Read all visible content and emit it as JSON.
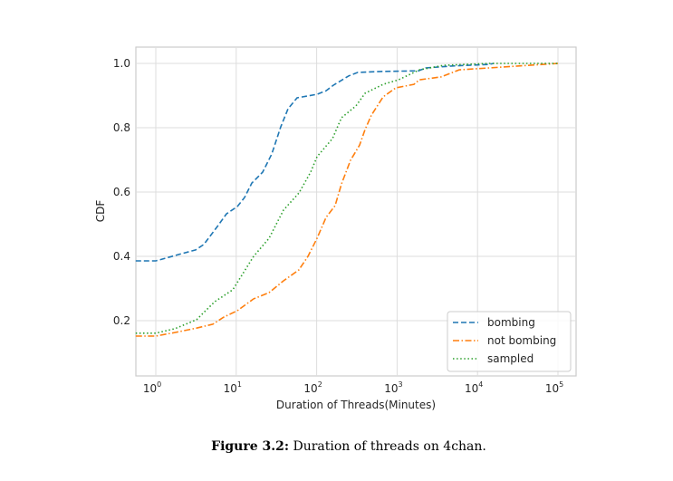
{
  "chart_data": {
    "type": "line",
    "xscale": "log",
    "x_note": "x values given as log10(minutes)",
    "xlabel": "Duration of Threads(Minutes)",
    "ylabel": "CDF",
    "xlim_log10": [
      -0.25,
      5.22
    ],
    "ylim": [
      0.03,
      1.05
    ],
    "grid": true,
    "legend_placement": "lower-right",
    "x_ticks": [
      {
        "base": "10",
        "exp": "0",
        "v": 0
      },
      {
        "base": "10",
        "exp": "1",
        "v": 1
      },
      {
        "base": "10",
        "exp": "2",
        "v": 2
      },
      {
        "base": "10",
        "exp": "3",
        "v": 3
      },
      {
        "base": "10",
        "exp": "4",
        "v": 4
      },
      {
        "base": "10",
        "exp": "5",
        "v": 5
      }
    ],
    "y_ticks": [
      "0.2",
      "0.4",
      "0.6",
      "0.8",
      "1.0"
    ],
    "series": [
      {
        "name": "bombing",
        "color": "#1f77b4",
        "style": "dashed",
        "x_log10": [
          -0.25,
          0,
          0.315,
          0.495,
          0.597,
          0.766,
          0.878,
          1.014,
          1.104,
          1.194,
          1.329,
          1.441,
          1.554,
          1.644,
          1.757,
          1.892,
          2.005,
          2.117,
          2.207,
          2.399,
          2.511,
          2.793,
          3.266,
          3.356,
          3.694,
          4.144,
          4.2
        ],
        "y": [
          0.386,
          0.386,
          0.408,
          0.42,
          0.437,
          0.493,
          0.532,
          0.555,
          0.583,
          0.628,
          0.662,
          0.718,
          0.803,
          0.859,
          0.893,
          0.899,
          0.904,
          0.915,
          0.932,
          0.961,
          0.972,
          0.975,
          0.977,
          0.986,
          0.992,
          0.997,
          1.0
        ]
      },
      {
        "name": "not bombing",
        "color": "#ff7f0e",
        "style": "dashdot",
        "x_log10": [
          -0.25,
          0,
          0.236,
          0.507,
          0.709,
          0.845,
          1.014,
          1.216,
          1.408,
          1.588,
          1.779,
          1.892,
          2.005,
          2.117,
          2.23,
          2.309,
          2.421,
          2.534,
          2.601,
          2.68,
          2.827,
          2.984,
          3.209,
          3.277,
          3.547,
          3.773,
          4.144,
          4.516,
          5.0
        ],
        "y": [
          0.152,
          0.152,
          0.163,
          0.177,
          0.189,
          0.211,
          0.231,
          0.268,
          0.287,
          0.324,
          0.358,
          0.4,
          0.456,
          0.521,
          0.558,
          0.625,
          0.699,
          0.746,
          0.794,
          0.839,
          0.896,
          0.924,
          0.935,
          0.949,
          0.958,
          0.98,
          0.986,
          0.992,
          1.0
        ]
      },
      {
        "name": "sampled",
        "color": "#2ca02c",
        "style": "dotted",
        "x_log10": [
          -0.25,
          0,
          0.236,
          0.507,
          0.732,
          0.957,
          1.216,
          1.408,
          1.588,
          1.779,
          1.926,
          2.005,
          2.196,
          2.309,
          2.489,
          2.601,
          2.827,
          3.018,
          3.277,
          3.581,
          4.144,
          5.0
        ],
        "y": [
          0.161,
          0.161,
          0.175,
          0.203,
          0.259,
          0.296,
          0.4,
          0.456,
          0.544,
          0.597,
          0.662,
          0.71,
          0.766,
          0.831,
          0.868,
          0.907,
          0.935,
          0.949,
          0.98,
          0.994,
          1.0,
          1.0
        ]
      }
    ]
  },
  "caption": {
    "label": "Figure 3.2:",
    "text": " Duration of threads on 4chan."
  }
}
